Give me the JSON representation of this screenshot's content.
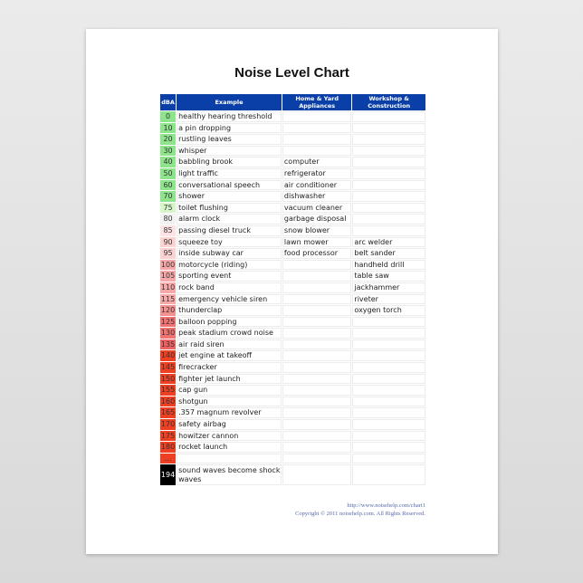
{
  "title": "Noise Level Chart",
  "headers": [
    "dBA",
    "Example",
    "Home & Yard Appliances",
    "Workshop & Construction"
  ],
  "rows": [
    {
      "dba": "0",
      "example": "healthy hearing threshold",
      "home": "",
      "work": "",
      "color": "#8ee48a"
    },
    {
      "dba": "10",
      "example": "a pin dropping",
      "home": "",
      "work": "",
      "color": "#8ee48a"
    },
    {
      "dba": "20",
      "example": "rustling leaves",
      "home": "",
      "work": "",
      "color": "#8ee48a"
    },
    {
      "dba": "30",
      "example": "whisper",
      "home": "",
      "work": "",
      "color": "#8ee48a"
    },
    {
      "dba": "40",
      "example": "babbling brook",
      "home": "computer",
      "work": "",
      "color": "#8ee48a"
    },
    {
      "dba": "50",
      "example": "light traffic",
      "home": "refrigerator",
      "work": "",
      "color": "#8ee48a"
    },
    {
      "dba": "60",
      "example": "conversational speech",
      "home": "air conditioner",
      "work": "",
      "color": "#8ee48a"
    },
    {
      "dba": "70",
      "example": "shower",
      "home": "dishwasher",
      "work": "",
      "color": "#8ee48a"
    },
    {
      "dba": "75",
      "example": "toilet flushing",
      "home": "vacuum cleaner",
      "work": "",
      "color": "#d6f5c8"
    },
    {
      "dba": "80",
      "example": "alarm clock",
      "home": "garbage disposal",
      "work": "",
      "color": "#f2f2f2"
    },
    {
      "dba": "85",
      "example": "passing diesel truck",
      "home": "snow blower",
      "work": "",
      "color": "#fde3e3"
    },
    {
      "dba": "90",
      "example": "squeeze toy",
      "home": "lawn mower",
      "work": "arc welder",
      "color": "#fbd2d2"
    },
    {
      "dba": "95",
      "example": "inside subway car",
      "home": "food processor",
      "work": "belt sander",
      "color": "#fbd2d2"
    },
    {
      "dba": "100",
      "example": "motorcycle (riding)",
      "home": "",
      "work": "handheld drill",
      "color": "#f6a8a8"
    },
    {
      "dba": "105",
      "example": "sporting event",
      "home": "",
      "work": "table saw",
      "color": "#f6a8a8"
    },
    {
      "dba": "110",
      "example": "rock band",
      "home": "",
      "work": "jackhammer",
      "color": "#f6a8a8"
    },
    {
      "dba": "115",
      "example": "emergency vehicle siren",
      "home": "",
      "work": "riveter",
      "color": "#f6a8a8"
    },
    {
      "dba": "120",
      "example": "thunderclap",
      "home": "",
      "work": "oxygen torch",
      "color": "#f59090"
    },
    {
      "dba": "125",
      "example": "balloon popping",
      "home": "",
      "work": "",
      "color": "#f27272"
    },
    {
      "dba": "130",
      "example": "peak stadium crowd noise",
      "home": "",
      "work": "",
      "color": "#f27272"
    },
    {
      "dba": "135",
      "example": "air raid siren",
      "home": "",
      "work": "",
      "color": "#f06060"
    },
    {
      "dba": "140",
      "example": "jet engine at takeoff",
      "home": "",
      "work": "",
      "color": "#ef3f22"
    },
    {
      "dba": "145",
      "example": "firecracker",
      "home": "",
      "work": "",
      "color": "#ef3f22"
    },
    {
      "dba": "150",
      "example": "fighter jet launch",
      "home": "",
      "work": "",
      "color": "#ef3f22"
    },
    {
      "dba": "155",
      "example": "cap gun",
      "home": "",
      "work": "",
      "color": "#ef3f22"
    },
    {
      "dba": "160",
      "example": "shotgun",
      "home": "",
      "work": "",
      "color": "#ef3f22"
    },
    {
      "dba": "165",
      "example": ".357 magnum revolver",
      "home": "",
      "work": "",
      "color": "#ef3f22"
    },
    {
      "dba": "170",
      "example": "safety airbag",
      "home": "",
      "work": "",
      "color": "#ef3f22"
    },
    {
      "dba": "175",
      "example": "howitzer cannon",
      "home": "",
      "work": "",
      "color": "#ef3f22"
    },
    {
      "dba": "180",
      "example": "rocket launch",
      "home": "",
      "work": "",
      "color": "#ef3f22"
    },
    {
      "dba": "...",
      "example": "",
      "home": "",
      "work": "",
      "color": "#ef3f22"
    },
    {
      "dba": "194",
      "example": "sound waves become shock waves",
      "home": "",
      "work": "",
      "color": "#000000",
      "text_color": "#ffffff",
      "tall": true
    }
  ],
  "footer": {
    "url": "http://www.noisehelp.com/chart1",
    "copyright": "Copyright © 2011 noisehelp.com. All Rights Reserved."
  },
  "colors": {
    "header": "#0b3fa8",
    "footer_text": "#5a6aa8"
  }
}
